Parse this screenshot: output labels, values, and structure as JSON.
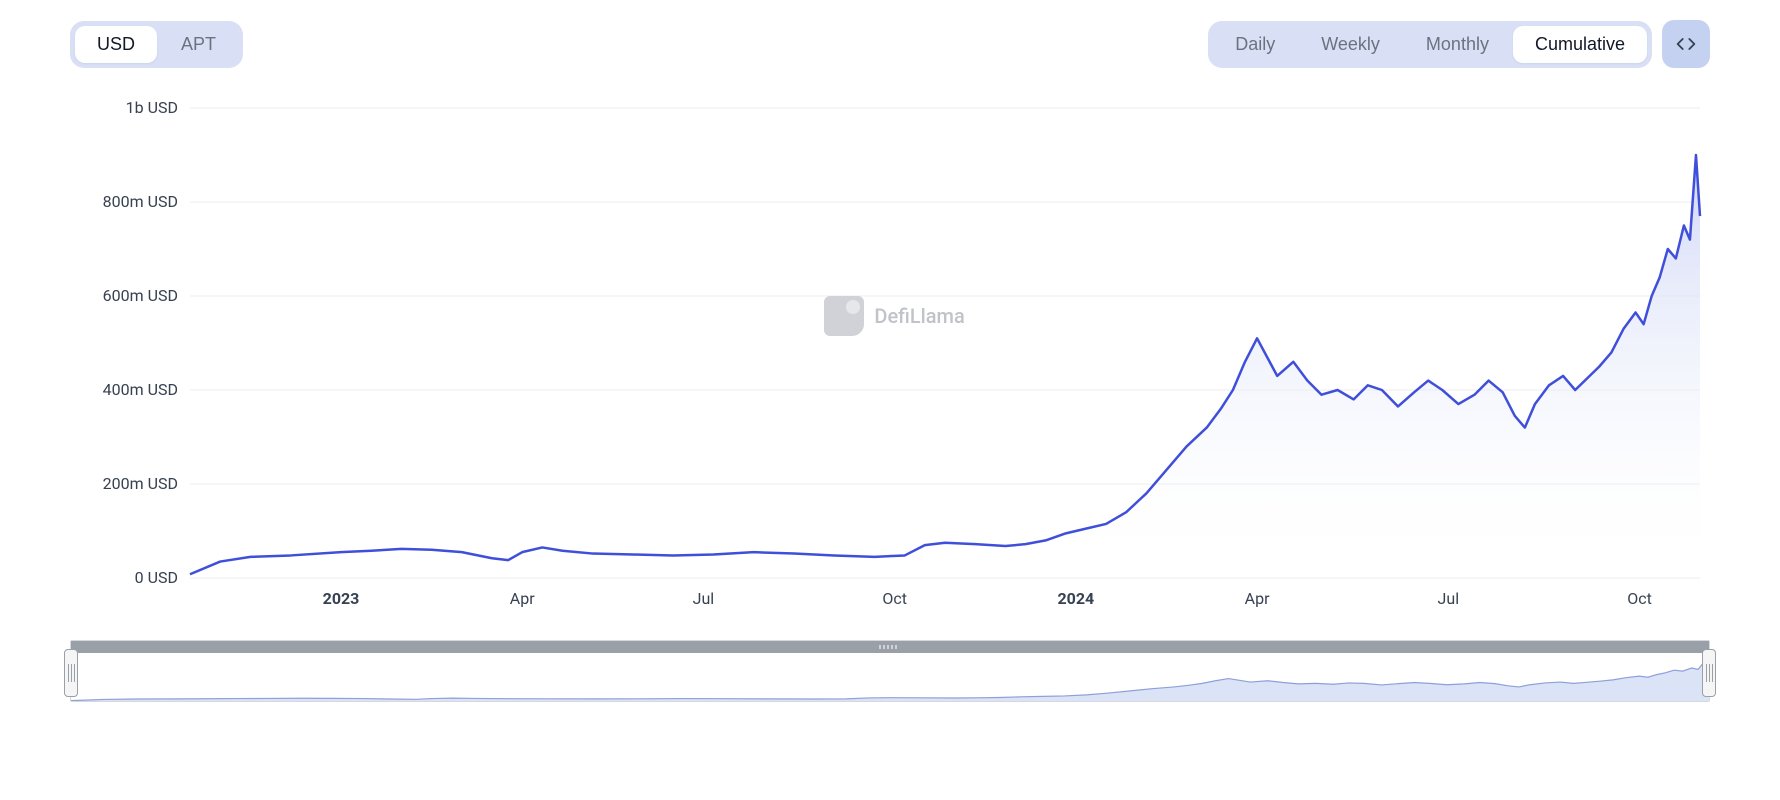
{
  "toolbar": {
    "currency": {
      "options": [
        "USD",
        "APT"
      ],
      "active_index": 0
    },
    "interval": {
      "options": [
        "Daily",
        "Weekly",
        "Monthly",
        "Cumulative"
      ],
      "active_index": 3
    },
    "embed_label": "embed"
  },
  "watermark": {
    "text": "DefiLlama"
  },
  "chart": {
    "type": "area",
    "line_color": "#3f4fd9",
    "fill_top_color": "#c9d2f5",
    "fill_bottom_color": "#ffffff",
    "line_width": 2.5,
    "background_color": "#ffffff",
    "grid_color": "#eceef2",
    "y": {
      "min": 0,
      "max": 1000000000,
      "tick_step": 200000000,
      "ticks": [
        {
          "v": 0,
          "label": "0 USD"
        },
        {
          "v": 200000000,
          "label": "200m USD"
        },
        {
          "v": 400000000,
          "label": "400m USD"
        },
        {
          "v": 600000000,
          "label": "600m USD"
        },
        {
          "v": 800000000,
          "label": "800m USD"
        },
        {
          "v": 1000000000,
          "label": "1b USD"
        }
      ]
    },
    "x": {
      "min": 0,
      "max": 750,
      "ticks": [
        {
          "t": 75,
          "label": "2023",
          "bold": true
        },
        {
          "t": 165,
          "label": "Apr",
          "bold": false
        },
        {
          "t": 255,
          "label": "Jul",
          "bold": false
        },
        {
          "t": 350,
          "label": "Oct",
          "bold": false
        },
        {
          "t": 440,
          "label": "2024",
          "bold": true
        },
        {
          "t": 530,
          "label": "Apr",
          "bold": false
        },
        {
          "t": 625,
          "label": "Jul",
          "bold": false
        },
        {
          "t": 720,
          "label": "Oct",
          "bold": false
        }
      ]
    },
    "series": [
      {
        "t": 0,
        "v": 8000000
      },
      {
        "t": 15,
        "v": 35000000
      },
      {
        "t": 30,
        "v": 45000000
      },
      {
        "t": 50,
        "v": 48000000
      },
      {
        "t": 75,
        "v": 55000000
      },
      {
        "t": 90,
        "v": 58000000
      },
      {
        "t": 105,
        "v": 62000000
      },
      {
        "t": 120,
        "v": 60000000
      },
      {
        "t": 135,
        "v": 55000000
      },
      {
        "t": 150,
        "v": 42000000
      },
      {
        "t": 158,
        "v": 38000000
      },
      {
        "t": 165,
        "v": 55000000
      },
      {
        "t": 175,
        "v": 65000000
      },
      {
        "t": 185,
        "v": 58000000
      },
      {
        "t": 200,
        "v": 52000000
      },
      {
        "t": 220,
        "v": 50000000
      },
      {
        "t": 240,
        "v": 48000000
      },
      {
        "t": 260,
        "v": 50000000
      },
      {
        "t": 280,
        "v": 55000000
      },
      {
        "t": 300,
        "v": 52000000
      },
      {
        "t": 320,
        "v": 48000000
      },
      {
        "t": 340,
        "v": 45000000
      },
      {
        "t": 355,
        "v": 48000000
      },
      {
        "t": 365,
        "v": 70000000
      },
      {
        "t": 375,
        "v": 75000000
      },
      {
        "t": 390,
        "v": 72000000
      },
      {
        "t": 405,
        "v": 68000000
      },
      {
        "t": 415,
        "v": 72000000
      },
      {
        "t": 425,
        "v": 80000000
      },
      {
        "t": 435,
        "v": 95000000
      },
      {
        "t": 445,
        "v": 105000000
      },
      {
        "t": 455,
        "v": 115000000
      },
      {
        "t": 465,
        "v": 140000000
      },
      {
        "t": 475,
        "v": 180000000
      },
      {
        "t": 485,
        "v": 230000000
      },
      {
        "t": 495,
        "v": 280000000
      },
      {
        "t": 505,
        "v": 320000000
      },
      {
        "t": 512,
        "v": 360000000
      },
      {
        "t": 518,
        "v": 400000000
      },
      {
        "t": 524,
        "v": 460000000
      },
      {
        "t": 530,
        "v": 510000000
      },
      {
        "t": 535,
        "v": 470000000
      },
      {
        "t": 540,
        "v": 430000000
      },
      {
        "t": 548,
        "v": 460000000
      },
      {
        "t": 555,
        "v": 420000000
      },
      {
        "t": 562,
        "v": 390000000
      },
      {
        "t": 570,
        "v": 400000000
      },
      {
        "t": 578,
        "v": 380000000
      },
      {
        "t": 585,
        "v": 410000000
      },
      {
        "t": 592,
        "v": 400000000
      },
      {
        "t": 600,
        "v": 365000000
      },
      {
        "t": 608,
        "v": 395000000
      },
      {
        "t": 615,
        "v": 420000000
      },
      {
        "t": 622,
        "v": 400000000
      },
      {
        "t": 630,
        "v": 370000000
      },
      {
        "t": 638,
        "v": 390000000
      },
      {
        "t": 645,
        "v": 420000000
      },
      {
        "t": 652,
        "v": 395000000
      },
      {
        "t": 658,
        "v": 345000000
      },
      {
        "t": 663,
        "v": 320000000
      },
      {
        "t": 668,
        "v": 370000000
      },
      {
        "t": 675,
        "v": 410000000
      },
      {
        "t": 682,
        "v": 430000000
      },
      {
        "t": 688,
        "v": 400000000
      },
      {
        "t": 694,
        "v": 425000000
      },
      {
        "t": 700,
        "v": 450000000
      },
      {
        "t": 706,
        "v": 480000000
      },
      {
        "t": 712,
        "v": 530000000
      },
      {
        "t": 718,
        "v": 565000000
      },
      {
        "t": 722,
        "v": 540000000
      },
      {
        "t": 726,
        "v": 600000000
      },
      {
        "t": 730,
        "v": 640000000
      },
      {
        "t": 734,
        "v": 700000000
      },
      {
        "t": 738,
        "v": 680000000
      },
      {
        "t": 742,
        "v": 750000000
      },
      {
        "t": 745,
        "v": 720000000
      },
      {
        "t": 748,
        "v": 900000000
      },
      {
        "t": 750,
        "v": 770000000
      }
    ]
  },
  "range_slider": {
    "mini_line_color": "#8f9fd9",
    "mini_fill_color": "#dbe3f7",
    "handle_bar_color": "#9aa0a8"
  }
}
